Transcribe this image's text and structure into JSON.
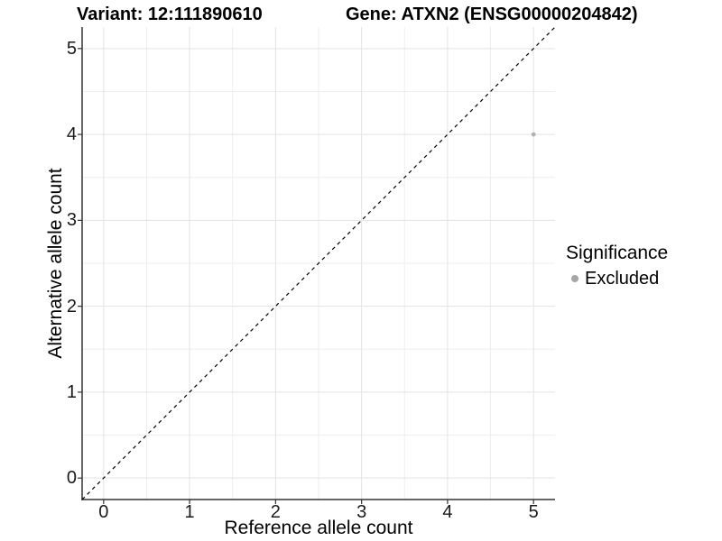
{
  "chart_data": {
    "type": "scatter",
    "titles": {
      "variant": "Variant: 12:111890610",
      "gene": "Gene: ATXN2 (ENSG00000204842)"
    },
    "xlabel": "Reference allele count",
    "ylabel": "Alternative allele count",
    "xlim": [
      -0.25,
      5.25
    ],
    "ylim": [
      -0.25,
      5.25
    ],
    "x_ticks": [
      0,
      1,
      2,
      3,
      4,
      5
    ],
    "y_ticks": [
      0,
      1,
      2,
      3,
      4,
      5
    ],
    "grid": {
      "major": true,
      "minor": true,
      "minor_step": 0.5
    },
    "points": [
      {
        "x": 5,
        "y": 4,
        "significance": "Excluded"
      }
    ],
    "reference_line": {
      "kind": "identity",
      "slope": 1,
      "intercept": 0,
      "linestyle": "dashed"
    },
    "legend": {
      "title": "Significance",
      "position": "right",
      "items": [
        {
          "label": "Excluded",
          "color": "#a6a6a6"
        }
      ]
    },
    "colors": {
      "point": "#b0b0b0",
      "grid_major": "#e3e3e3",
      "grid_minor": "#eeeeee",
      "axis_line": "#333333",
      "tick_mark": "#333333",
      "reference_line": "#000000",
      "background": "#ffffff"
    }
  }
}
